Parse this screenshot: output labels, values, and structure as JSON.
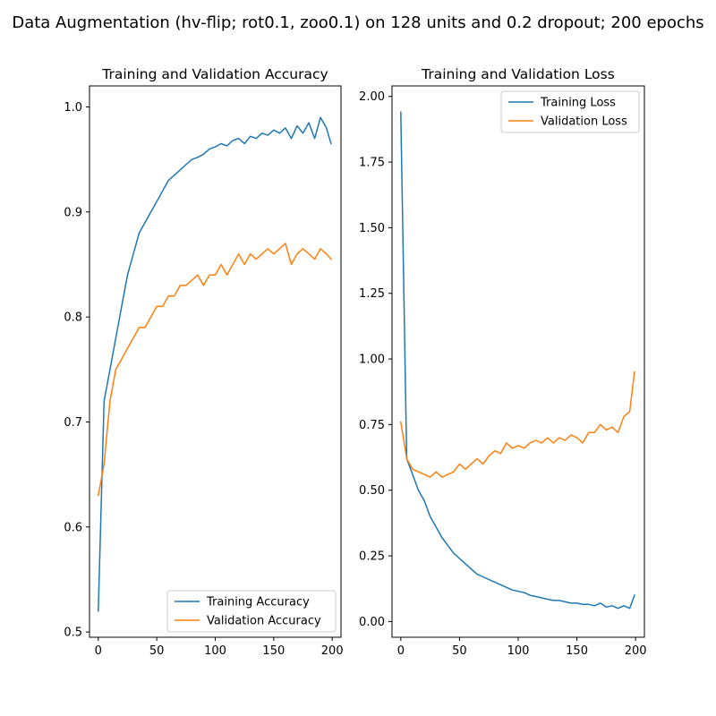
{
  "figure": {
    "suptitle": "Data Augmentation (hv-flip; rot0.1, zoo0.1) on 128 units and 0.2 dropout; 200 epochs"
  },
  "chart_data": [
    {
      "type": "line",
      "title": "Training and Validation Accuracy",
      "xlabel": "",
      "ylabel": "",
      "xlim": [
        -7.5,
        207.5
      ],
      "ylim": [
        0.495,
        1.02
      ],
      "xticks": [
        0,
        50,
        100,
        150,
        200
      ],
      "xtick_labels": [
        "0",
        "50",
        "100",
        "150",
        "200"
      ],
      "yticks": [
        0.5,
        0.6,
        0.7,
        0.8,
        0.9,
        1.0
      ],
      "ytick_labels": [
        "0.5",
        "0.6",
        "0.7",
        "0.8",
        "0.9",
        "1.0"
      ],
      "grid": false,
      "legend_position": "lower-right",
      "series": [
        {
          "name": "Training Accuracy",
          "color": "#1f77b4",
          "x": [
            0,
            5,
            10,
            15,
            20,
            25,
            30,
            35,
            40,
            45,
            50,
            55,
            60,
            65,
            70,
            75,
            80,
            85,
            90,
            95,
            100,
            105,
            110,
            115,
            120,
            125,
            130,
            135,
            140,
            145,
            150,
            155,
            160,
            165,
            170,
            175,
            180,
            185,
            190,
            195,
            199
          ],
          "y": [
            0.52,
            0.72,
            0.75,
            0.78,
            0.81,
            0.84,
            0.86,
            0.88,
            0.89,
            0.9,
            0.91,
            0.92,
            0.93,
            0.935,
            0.94,
            0.945,
            0.95,
            0.952,
            0.955,
            0.96,
            0.962,
            0.965,
            0.963,
            0.968,
            0.97,
            0.965,
            0.972,
            0.97,
            0.975,
            0.973,
            0.978,
            0.975,
            0.98,
            0.97,
            0.982,
            0.975,
            0.985,
            0.97,
            0.99,
            0.98,
            0.965
          ]
        },
        {
          "name": "Validation Accuracy",
          "color": "#ff7f0e",
          "x": [
            0,
            5,
            10,
            15,
            20,
            25,
            30,
            35,
            40,
            45,
            50,
            55,
            60,
            65,
            70,
            75,
            80,
            85,
            90,
            95,
            100,
            105,
            110,
            115,
            120,
            125,
            130,
            135,
            140,
            145,
            150,
            155,
            160,
            165,
            170,
            175,
            180,
            185,
            190,
            195,
            199
          ],
          "y": [
            0.63,
            0.66,
            0.72,
            0.75,
            0.76,
            0.77,
            0.78,
            0.79,
            0.79,
            0.8,
            0.81,
            0.81,
            0.82,
            0.82,
            0.83,
            0.83,
            0.835,
            0.84,
            0.83,
            0.84,
            0.84,
            0.85,
            0.84,
            0.85,
            0.86,
            0.85,
            0.86,
            0.855,
            0.86,
            0.865,
            0.86,
            0.865,
            0.87,
            0.85,
            0.86,
            0.865,
            0.86,
            0.855,
            0.865,
            0.86,
            0.855
          ]
        }
      ]
    },
    {
      "type": "line",
      "title": "Training and Validation Loss",
      "xlabel": "",
      "ylabel": "",
      "xlim": [
        -7.5,
        207.5
      ],
      "ylim": [
        -0.06,
        2.04
      ],
      "xticks": [
        0,
        50,
        100,
        150,
        200
      ],
      "xtick_labels": [
        "0",
        "50",
        "100",
        "150",
        "200"
      ],
      "yticks": [
        0.0,
        0.25,
        0.5,
        0.75,
        1.0,
        1.25,
        1.5,
        1.75,
        2.0
      ],
      "ytick_labels": [
        "0.00",
        "0.25",
        "0.50",
        "0.75",
        "1.00",
        "1.25",
        "1.50",
        "1.75",
        "2.00"
      ],
      "grid": false,
      "legend_position": "upper-right",
      "series": [
        {
          "name": "Training Loss",
          "color": "#1f77b4",
          "x": [
            0,
            5,
            10,
            15,
            20,
            25,
            30,
            35,
            40,
            45,
            50,
            55,
            60,
            65,
            70,
            75,
            80,
            85,
            90,
            95,
            100,
            105,
            110,
            115,
            120,
            125,
            130,
            135,
            140,
            145,
            150,
            155,
            160,
            165,
            170,
            175,
            180,
            185,
            190,
            195,
            199
          ],
          "y": [
            1.94,
            0.62,
            0.56,
            0.5,
            0.46,
            0.4,
            0.36,
            0.32,
            0.29,
            0.26,
            0.24,
            0.22,
            0.2,
            0.18,
            0.17,
            0.16,
            0.15,
            0.14,
            0.13,
            0.12,
            0.115,
            0.11,
            0.1,
            0.095,
            0.09,
            0.085,
            0.08,
            0.08,
            0.075,
            0.07,
            0.07,
            0.065,
            0.065,
            0.06,
            0.07,
            0.055,
            0.06,
            0.05,
            0.06,
            0.05,
            0.1
          ]
        },
        {
          "name": "Validation Loss",
          "color": "#ff7f0e",
          "x": [
            0,
            5,
            10,
            15,
            20,
            25,
            30,
            35,
            40,
            45,
            50,
            55,
            60,
            65,
            70,
            75,
            80,
            85,
            90,
            95,
            100,
            105,
            110,
            115,
            120,
            125,
            130,
            135,
            140,
            145,
            150,
            155,
            160,
            165,
            170,
            175,
            180,
            185,
            190,
            195,
            199
          ],
          "y": [
            0.76,
            0.62,
            0.58,
            0.57,
            0.56,
            0.55,
            0.57,
            0.55,
            0.56,
            0.57,
            0.6,
            0.58,
            0.6,
            0.62,
            0.6,
            0.63,
            0.65,
            0.64,
            0.68,
            0.66,
            0.67,
            0.66,
            0.68,
            0.69,
            0.68,
            0.7,
            0.68,
            0.7,
            0.69,
            0.71,
            0.7,
            0.68,
            0.72,
            0.72,
            0.75,
            0.73,
            0.74,
            0.72,
            0.78,
            0.8,
            0.95
          ]
        }
      ]
    }
  ]
}
